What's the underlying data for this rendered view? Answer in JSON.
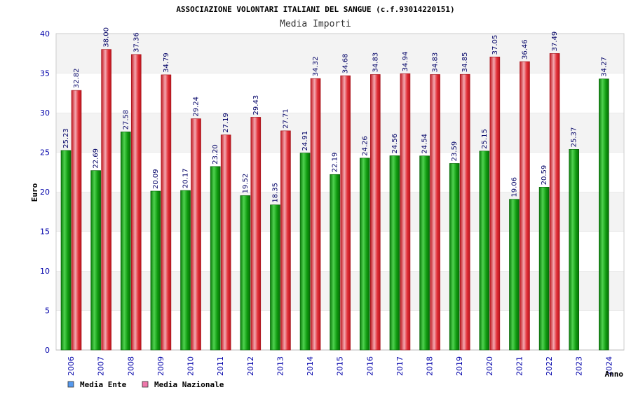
{
  "chart_data": {
    "type": "bar",
    "title": "ASSOCIAZIONE VOLONTARI ITALIANI DEL SANGUE (c.f.93014220151)",
    "subtitle": "Media Importi",
    "xlabel": "Anno",
    "ylabel": "Euro",
    "ylim": [
      0,
      40
    ],
    "yticks": [
      0,
      5,
      10,
      15,
      20,
      25,
      30,
      35,
      40
    ],
    "grid": "horizontal bands",
    "legend_position": "bottom-left",
    "categories": [
      "2006",
      "2007",
      "2008",
      "2009",
      "2010",
      "2011",
      "2012",
      "2013",
      "2014",
      "2015",
      "2016",
      "2017",
      "2018",
      "2019",
      "2020",
      "2021",
      "2022",
      "2023",
      "2024"
    ],
    "series": [
      {
        "name": "Media Ente",
        "color": "#1aa51a",
        "legend_color": "#5599ee",
        "values": [
          25.23,
          22.69,
          27.58,
          20.09,
          20.17,
          23.2,
          19.52,
          18.35,
          24.91,
          22.19,
          24.26,
          24.56,
          24.54,
          23.59,
          25.15,
          19.06,
          20.59,
          25.37,
          34.27
        ],
        "labels": [
          "25.23",
          "22.69",
          "27.58",
          "20.09",
          "20.17",
          "23.20",
          "19.52",
          "18.35",
          "24.91",
          "22.19",
          "24.26",
          "24.56",
          "24.54",
          "23.59",
          "25.15",
          "19.06",
          "20.59",
          "25.37",
          "34.27"
        ]
      },
      {
        "name": "Media Nazionale",
        "color": "#e8303a",
        "legend_color": "#ee77aa",
        "values": [
          32.82,
          38.0,
          37.36,
          34.79,
          29.24,
          27.19,
          29.43,
          27.71,
          34.32,
          34.68,
          34.83,
          34.94,
          34.83,
          34.85,
          37.05,
          36.46,
          37.49,
          null,
          null
        ],
        "labels": [
          "32.82",
          "38.00",
          "37.36",
          "34.79",
          "29.24",
          "27.19",
          "29.43",
          "27.71",
          "34.32",
          "34.68",
          "34.83",
          "34.94",
          "34.83",
          "34.85",
          "37.05",
          "36.46",
          "37.49",
          null,
          null
        ]
      }
    ]
  }
}
